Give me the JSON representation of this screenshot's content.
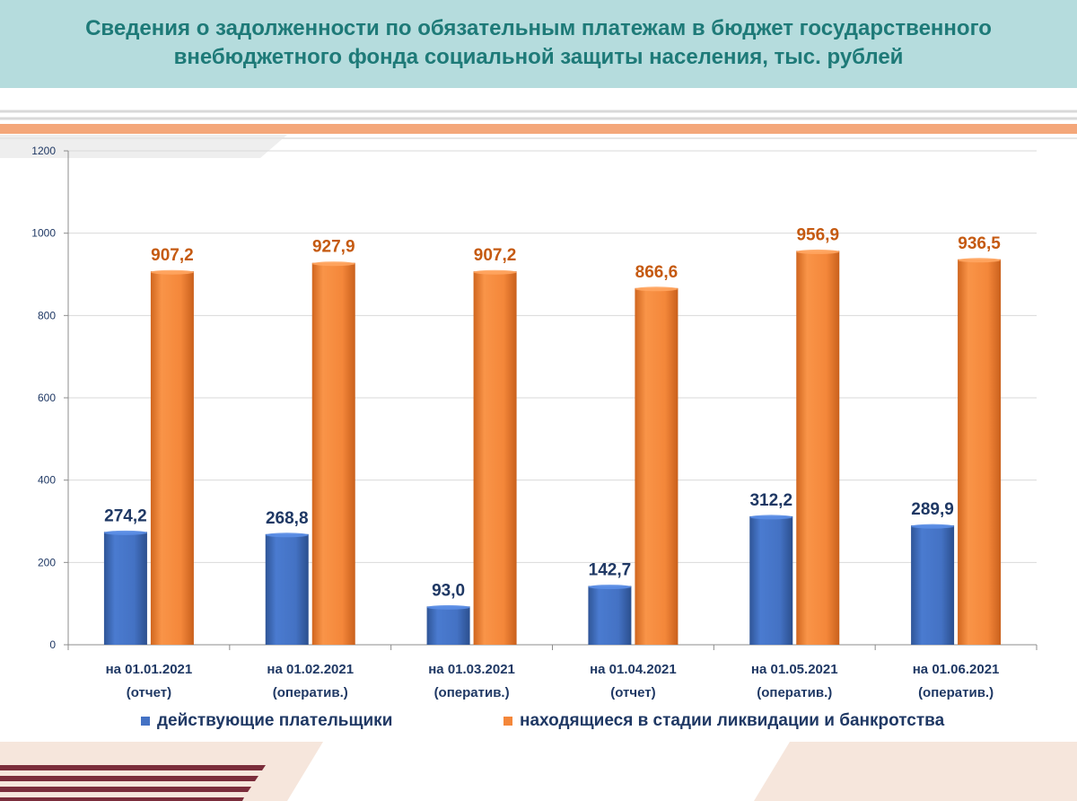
{
  "title_lines": [
    "Сведения о задолженности по обязательным платежам в бюджет государственного",
    "внебюджетного фонда социальной защиты населения, тыс. рублей"
  ],
  "colors": {
    "title_band": "#b5dcdd",
    "title_text": "#1e7a78",
    "series_blue": "#4472c4",
    "series_orange": "#f4873a",
    "label_blue": "#1f3864",
    "label_orange": "#c55a11",
    "stripe_orange": "#f4a77a",
    "stripe_maroon": "#7b2d3b"
  },
  "chart_data": {
    "type": "bar",
    "categories": [
      [
        "на 01.01.2021",
        "(отчет)"
      ],
      [
        "на 01.02.2021",
        "(оператив.)"
      ],
      [
        "на 01.03.2021",
        "(оператив.)"
      ],
      [
        "на 01.04.2021",
        "(отчет)"
      ],
      [
        "на 01.05.2021",
        "(оператив.)"
      ],
      [
        "на 01.06.2021",
        "(оператив.)"
      ]
    ],
    "series": [
      {
        "name": "действующие плательщики",
        "values": [
          274.2,
          268.8,
          93.0,
          142.7,
          312.2,
          289.9
        ],
        "labels": [
          "274,2",
          "268,8",
          "93,0",
          "142,7",
          "312,2",
          "289,9"
        ]
      },
      {
        "name": "находящиеся в стадии ликвидации и банкротства",
        "values": [
          907.2,
          927.9,
          907.2,
          866.6,
          956.9,
          936.5
        ],
        "labels": [
          "907,2",
          "927,9",
          "907,2",
          "866,6",
          "956,9",
          "936,5"
        ]
      }
    ],
    "ylim": [
      0,
      1200
    ],
    "yticks": [
      "0",
      "200",
      "400",
      "600",
      "800",
      "1000",
      "1200"
    ],
    "grid": true,
    "legend_position": "bottom",
    "xlabel": "",
    "ylabel": ""
  }
}
